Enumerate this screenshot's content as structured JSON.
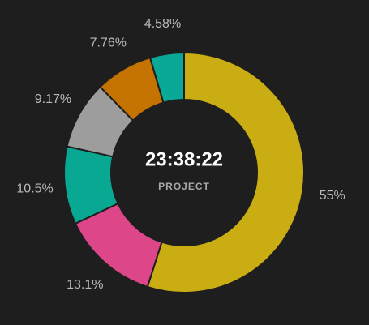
{
  "chart_data": {
    "type": "donut",
    "center_title": "23:38:22",
    "center_subtitle": "PROJECT",
    "values": [
      55,
      13.1,
      10.5,
      9.17,
      7.76,
      4.58
    ],
    "value_labels": [
      "55%",
      "13.1%",
      "10.5%",
      "9.17%",
      "7.76%",
      "4.58%"
    ],
    "colors": [
      "#c9ad13",
      "#dd478a",
      "#08a892",
      "#9d9d9d",
      "#c47200",
      "#0aa997"
    ]
  }
}
